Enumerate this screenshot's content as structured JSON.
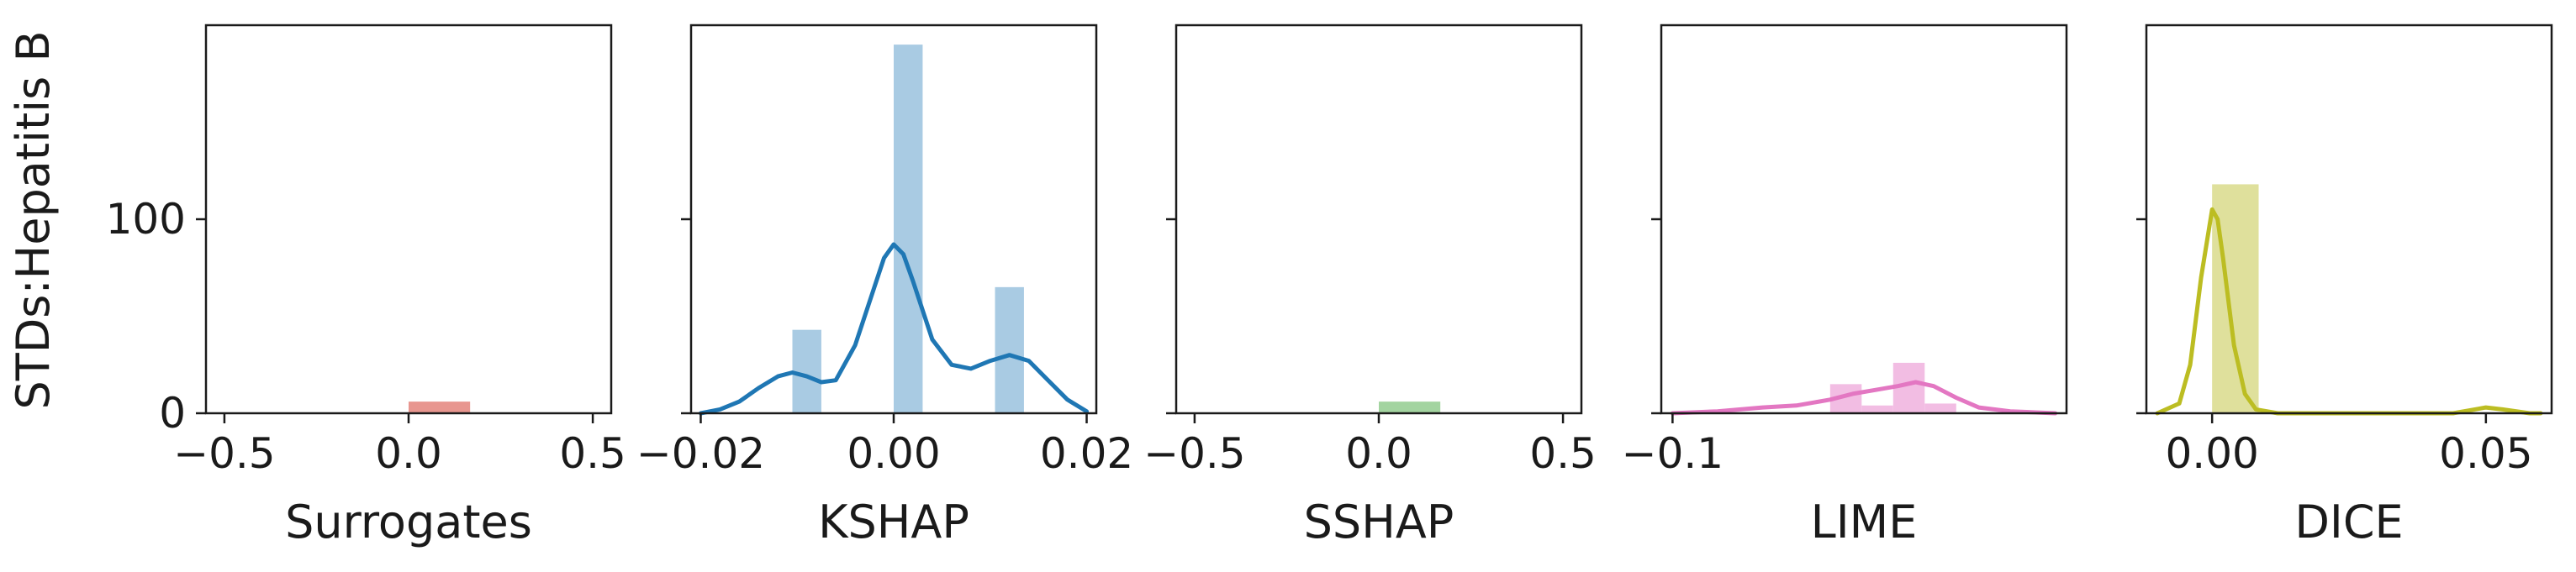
{
  "figure": {
    "ylabel": "STDs:Hepatitis B"
  },
  "chart_data": [
    {
      "type": "bar",
      "xlabel": "Surrogates",
      "color": "#e8968f",
      "xlim": [
        -0.55,
        0.55
      ],
      "ylim": [
        0,
        200
      ],
      "xticks": [
        -0.5,
        0.0,
        0.5
      ],
      "xtick_labels": [
        "−0.5",
        "0.0",
        "0.5"
      ],
      "yticks": [
        0,
        100
      ],
      "ytick_labels": [
        "0",
        "100"
      ],
      "show_ytick_labels": true,
      "bars": [
        {
          "x0": 0.0,
          "x1": 0.167,
          "value": 6
        }
      ],
      "kde": []
    },
    {
      "type": "bar",
      "xlabel": "KSHAP",
      "color": "#a9cbe3",
      "line_color": "#1f77b4",
      "xlim": [
        -0.021,
        0.021
      ],
      "ylim": [
        0,
        200
      ],
      "xticks": [
        -0.02,
        0.0,
        0.02
      ],
      "xtick_labels": [
        "−0.02",
        "0.00",
        "0.02"
      ],
      "yticks": [
        0,
        100
      ],
      "ytick_labels": [
        "0",
        "100"
      ],
      "show_ytick_labels": false,
      "bars": [
        {
          "x0": -0.0105,
          "x1": -0.0075,
          "value": 43
        },
        {
          "x0": 0.0,
          "x1": 0.003,
          "value": 190
        },
        {
          "x0": 0.0105,
          "x1": 0.0135,
          "value": 65
        }
      ],
      "kde": [
        [
          -0.02,
          0
        ],
        [
          -0.018,
          2
        ],
        [
          -0.016,
          6
        ],
        [
          -0.014,
          13
        ],
        [
          -0.012,
          19
        ],
        [
          -0.0105,
          21
        ],
        [
          -0.009,
          19
        ],
        [
          -0.0075,
          16
        ],
        [
          -0.006,
          17
        ],
        [
          -0.004,
          35
        ],
        [
          -0.002,
          65
        ],
        [
          -0.001,
          80
        ],
        [
          0.0,
          87
        ],
        [
          0.001,
          82
        ],
        [
          0.002,
          68
        ],
        [
          0.004,
          38
        ],
        [
          0.006,
          25
        ],
        [
          0.008,
          23
        ],
        [
          0.01,
          27
        ],
        [
          0.012,
          30
        ],
        [
          0.014,
          27
        ],
        [
          0.016,
          17
        ],
        [
          0.018,
          7
        ],
        [
          0.02,
          1
        ]
      ]
    },
    {
      "type": "bar",
      "xlabel": "SSHAP",
      "color": "#a3d4a0",
      "xlim": [
        -0.55,
        0.55
      ],
      "ylim": [
        0,
        200
      ],
      "xticks": [
        -0.5,
        0.0,
        0.5
      ],
      "xtick_labels": [
        "−0.5",
        "0.0",
        "0.5"
      ],
      "yticks": [
        0,
        100
      ],
      "ytick_labels": [
        "0",
        "100"
      ],
      "show_ytick_labels": false,
      "bars": [
        {
          "x0": 0.0,
          "x1": 0.167,
          "value": 6
        }
      ],
      "kde": []
    },
    {
      "type": "bar",
      "xlabel": "LIME",
      "color": "#f2bde3",
      "line_color": "#e377c2",
      "xlim": [
        -0.105,
        0.075
      ],
      "ylim": [
        0,
        200
      ],
      "xticks": [
        -0.1
      ],
      "xtick_labels": [
        "−0.1"
      ],
      "yticks": [
        0,
        100
      ],
      "ytick_labels": [
        "0",
        "100"
      ],
      "show_ytick_labels": false,
      "bars": [
        {
          "x0": -0.03,
          "x1": -0.016,
          "value": 15
        },
        {
          "x0": -0.016,
          "x1": -0.002,
          "value": 4
        },
        {
          "x0": -0.002,
          "x1": 0.012,
          "value": 26
        },
        {
          "x0": 0.012,
          "x1": 0.026,
          "value": 5
        }
      ],
      "kde": [
        [
          -0.1,
          0
        ],
        [
          -0.08,
          1
        ],
        [
          -0.06,
          3
        ],
        [
          -0.045,
          4
        ],
        [
          -0.03,
          7
        ],
        [
          -0.02,
          10
        ],
        [
          -0.01,
          12
        ],
        [
          0.0,
          14
        ],
        [
          0.008,
          16
        ],
        [
          0.016,
          14
        ],
        [
          0.026,
          8
        ],
        [
          0.036,
          3
        ],
        [
          0.05,
          1
        ],
        [
          0.07,
          0
        ]
      ]
    },
    {
      "type": "bar",
      "xlabel": "DICE",
      "color": "#dfe09c",
      "line_color": "#bcbd22",
      "xlim": [
        -0.012,
        0.062
      ],
      "ylim": [
        0,
        200
      ],
      "xticks": [
        0.0,
        0.05
      ],
      "xtick_labels": [
        "0.00",
        "0.05"
      ],
      "yticks": [
        0,
        100
      ],
      "ytick_labels": [
        "0",
        "100"
      ],
      "show_ytick_labels": false,
      "bars": [
        {
          "x0": 0.0,
          "x1": 0.0085,
          "value": 118
        }
      ],
      "kde": [
        [
          -0.01,
          0
        ],
        [
          -0.006,
          5
        ],
        [
          -0.004,
          25
        ],
        [
          -0.002,
          70
        ],
        [
          0.0,
          105
        ],
        [
          0.001,
          100
        ],
        [
          0.002,
          80
        ],
        [
          0.004,
          35
        ],
        [
          0.006,
          10
        ],
        [
          0.008,
          2
        ],
        [
          0.012,
          0
        ],
        [
          0.03,
          0
        ],
        [
          0.044,
          0
        ],
        [
          0.048,
          2
        ],
        [
          0.05,
          3
        ],
        [
          0.053,
          2
        ],
        [
          0.058,
          0
        ],
        [
          0.06,
          0
        ]
      ]
    }
  ]
}
